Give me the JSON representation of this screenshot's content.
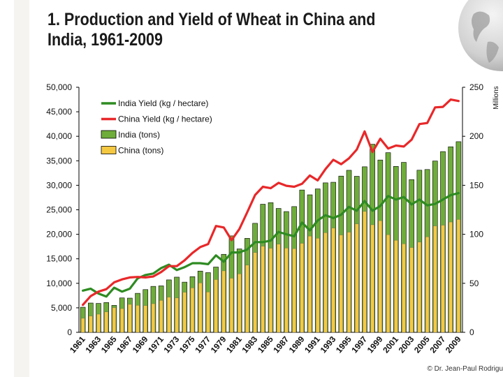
{
  "title": "1. Production and Yield of Wheat in China and India, 1961-2009",
  "credit": "© Dr. Jean-Paul Rodrigu",
  "chart_data": {
    "type": "bar",
    "categories": [
      1961,
      1962,
      1963,
      1964,
      1965,
      1966,
      1967,
      1968,
      1969,
      1970,
      1971,
      1972,
      1973,
      1974,
      1975,
      1976,
      1977,
      1978,
      1979,
      1980,
      1981,
      1982,
      1983,
      1984,
      1985,
      1986,
      1987,
      1988,
      1989,
      1990,
      1991,
      1992,
      1993,
      1994,
      1995,
      1996,
      1997,
      1998,
      1999,
      2000,
      2001,
      2002,
      2003,
      2004,
      2005,
      2006,
      2007,
      2008,
      2009
    ],
    "x_tick_labels": [
      "1961",
      "1963",
      "1965",
      "1967",
      "1969",
      "1971",
      "1973",
      "1975",
      "1977",
      "1979",
      "1981",
      "1983",
      "1985",
      "1987",
      "1989",
      "1991",
      "1993",
      "1995",
      "1997",
      "1999",
      "2001",
      "2003",
      "2005",
      "2007",
      "2009"
    ],
    "y_left": {
      "min": 0,
      "max": 50000,
      "ticks": [
        "0",
        "5,000",
        "10,000",
        "15,000",
        "20,000",
        "25,000",
        "30,000",
        "35,000",
        "40,000",
        "45,000",
        "50,000"
      ]
    },
    "y_right": {
      "label": "Millions",
      "min": 0,
      "max": 250,
      "ticks": [
        "0",
        "50",
        "100",
        "150",
        "200",
        "250"
      ]
    },
    "series": [
      {
        "name": "India Yield (kg / hectare)",
        "type": "line",
        "axis": "left",
        "color": "#2e8b22",
        "values": [
          8500,
          8900,
          7900,
          7300,
          9100,
          8300,
          8900,
          11000,
          11700,
          12000,
          13100,
          13800,
          12700,
          13300,
          14100,
          14100,
          13900,
          15700,
          14400,
          16300,
          16300,
          16900,
          18400,
          18400,
          18700,
          20500,
          20000,
          19600,
          22400,
          20800,
          22800,
          23900,
          23300,
          24000,
          25600,
          24800,
          26800,
          24800,
          25800,
          27800,
          27100,
          27600,
          26100,
          27100,
          25900,
          26200,
          27100,
          28000,
          28400
        ]
      },
      {
        "name": "China Yield (kg / hectare)",
        "type": "line",
        "axis": "left",
        "color": "#e8282a",
        "values": [
          5600,
          7400,
          8300,
          8800,
          10200,
          10800,
          11200,
          11300,
          11200,
          11400,
          12300,
          13500,
          13500,
          14700,
          16200,
          17400,
          18000,
          21700,
          21400,
          18800,
          21100,
          24500,
          28000,
          29700,
          29400,
          30500,
          29900,
          29700,
          30300,
          32000,
          31000,
          33300,
          35200,
          34300,
          35500,
          37300,
          41000,
          36800,
          39500,
          37500,
          38100,
          37900,
          39300,
          42500,
          42700,
          45900,
          46000,
          47500,
          47200
        ]
      },
      {
        "name": "India (tons)",
        "type": "bar",
        "axis": "right",
        "color": "#6fad3a",
        "values": [
          25.6,
          29.9,
          29.5,
          30.4,
          27.5,
          35.1,
          34.9,
          39.8,
          43.6,
          46.9,
          47.4,
          53.5,
          56.3,
          51.2,
          56.8,
          62.5,
          60.9,
          66.6,
          79.6,
          98.4,
          85.1,
          95.9,
          111.2,
          130.7,
          132.3,
          126.4,
          123.2,
          128.3,
          145.2,
          140.3,
          146.3,
          152.5,
          153.1,
          159.4,
          165.3,
          159.2,
          168.9,
          191.9,
          175.8,
          183.3,
          169.3,
          173.4,
          155.8,
          165.4,
          166.1,
          174.8,
          184.4,
          189.3,
          194.5
        ]
      },
      {
        "name": "China (tons)",
        "type": "bar",
        "axis": "right",
        "color": "#f5c842",
        "values": [
          14.3,
          16.6,
          18.5,
          20.8,
          25.2,
          24.2,
          28.5,
          27.5,
          27.3,
          29.2,
          32.6,
          35.9,
          35.1,
          40.9,
          45.3,
          50.4,
          41.1,
          53.8,
          62.7,
          55.2,
          59.6,
          68.5,
          81.4,
          87.8,
          85.8,
          90.0,
          85.9,
          85.4,
          90.8,
          98.2,
          96.0,
          101.6,
          106.4,
          99.3,
          102.2,
          110.6,
          123.3,
          109.7,
          113.9,
          99.6,
          93.9,
          90.3,
          86.5,
          92.0,
          97.4,
          108.5,
          109.3,
          112.5,
          115.1
        ]
      }
    ]
  }
}
